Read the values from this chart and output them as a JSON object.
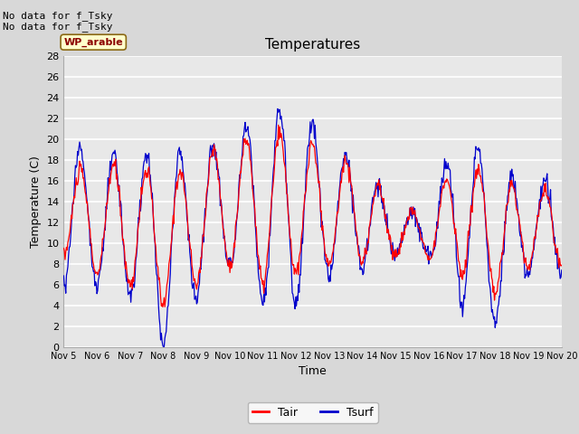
{
  "title": "Temperatures",
  "xlabel": "Time",
  "ylabel": "Temperature (C)",
  "ylim": [
    0,
    28
  ],
  "yticks": [
    0,
    2,
    4,
    6,
    8,
    10,
    12,
    14,
    16,
    18,
    20,
    22,
    24,
    26,
    28
  ],
  "xtick_labels": [
    "Nov 5",
    "Nov 6",
    "Nov 7",
    "Nov 8",
    "Nov 9",
    "Nov 10",
    "Nov 11",
    "Nov 12",
    "Nov 13",
    "Nov 14",
    "Nov 15",
    "Nov 16",
    "Nov 17",
    "Nov 18",
    "Nov 19",
    "Nov 20"
  ],
  "color_tair": "#ff0000",
  "color_tsurf": "#0000cc",
  "legend_label_tair": "Tair",
  "legend_label_tsurf": "Tsurf",
  "annotation_text": "No data for f_Tsky\nNo data for f_Tsky",
  "box_label": "WP_arable",
  "plot_bg_color": "#e8e8e8",
  "fig_bg_color": "#d8d8d8",
  "grid_color": "#ffffff",
  "n_points": 720,
  "seed": 10
}
